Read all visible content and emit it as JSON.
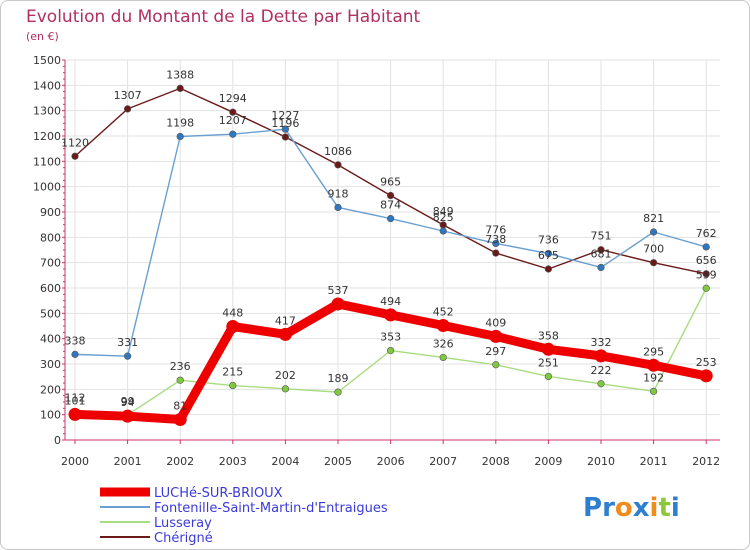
{
  "chart_data": {
    "type": "line",
    "title": "Evolution du Montant de la Dette par Habitant",
    "subtitle": "(en €)",
    "x": [
      "2000",
      "2001",
      "2002",
      "2003",
      "2004",
      "2005",
      "2006",
      "2007",
      "2008",
      "2009",
      "2010",
      "2011",
      "2012"
    ],
    "ylim": [
      0,
      1500
    ],
    "yticks": [
      0,
      100,
      200,
      300,
      400,
      500,
      600,
      700,
      800,
      900,
      1000,
      1100,
      1200,
      1300,
      1400,
      1500
    ],
    "grid": true,
    "legend_position": "bottom-left",
    "series": [
      {
        "name": "Chérigné",
        "color": "#6b1a1a",
        "dot": "#6b1a1a",
        "values": [
          1120,
          1307,
          1388,
          1294,
          1196,
          1086,
          965,
          849,
          738,
          675,
          751,
          700,
          656
        ]
      },
      {
        "name": "Fontenille-Saint-Martin-d'Entraigues",
        "color": "#6a9fd0",
        "dot": "#2f78c0",
        "values": [
          338,
          331,
          1198,
          1207,
          1227,
          918,
          874,
          825,
          776,
          736,
          681,
          821,
          762
        ]
      },
      {
        "name": "Lusseray",
        "color": "#a8dc80",
        "dot": "#80c840",
        "values": [
          112,
          99,
          236,
          215,
          202,
          189,
          353,
          326,
          297,
          251,
          222,
          192,
          599
        ]
      },
      {
        "name": "LUCHé-SUR-BRIOUX",
        "color": "#ee0000",
        "dot": "#ee0000",
        "values": [
          101,
          94,
          81,
          448,
          417,
          537,
          494,
          452,
          409,
          358,
          332,
          295,
          253
        ]
      }
    ]
  },
  "logo": {
    "text": "Proxiti",
    "letters": [
      "P",
      "r",
      "o",
      "x",
      "i",
      "t",
      "i"
    ],
    "colors": [
      "#2f7fd0",
      "#2f7fd0",
      "#f08c1e",
      "#2f7fd0",
      "#f08c1e",
      "#8cc83c",
      "#2f7fd0"
    ]
  }
}
